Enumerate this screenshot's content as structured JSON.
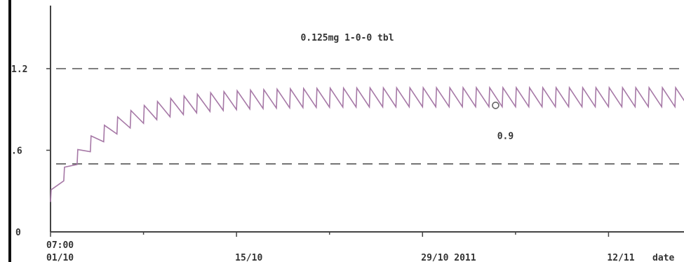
{
  "chart_data": {
    "type": "line",
    "title": "0.125mg 1-0-0 tbl",
    "xlabel": "date",
    "ylabel": "",
    "y_ticks": [
      {
        "value": 0,
        "label": "0"
      },
      {
        "value": 0.6,
        "label": ".6"
      },
      {
        "value": 1.2,
        "label": "1.2"
      }
    ],
    "ylim": [
      0,
      1.6
    ],
    "x_ticks": [
      {
        "value": 0,
        "label_top": "07:00",
        "label_bottom": "01/10"
      },
      {
        "value": 14,
        "label_top": "",
        "label_bottom": "15/10"
      },
      {
        "value": 28,
        "label_top": "",
        "label_bottom": "29/10  2011"
      },
      {
        "value": 42,
        "label_top": "",
        "label_bottom": "12/11"
      }
    ],
    "xlim": [
      0,
      49
    ],
    "reference_lines": [
      {
        "value": 1.2,
        "style": "dashed"
      },
      {
        "value": 0.5,
        "style": "dashed"
      }
    ],
    "series": [
      {
        "color": "#a678a6",
        "dosing_interval_days": 1,
        "first_trough": 0.22,
        "first_peak": 0.31,
        "steady_state_trough": 0.92,
        "steady_state_peak": 1.06,
        "accumulation_rate_per_day": 0.25
      }
    ],
    "marker": {
      "x": 33.5,
      "y": 0.93,
      "label": "0.9"
    },
    "grid": false,
    "legend": "none"
  }
}
